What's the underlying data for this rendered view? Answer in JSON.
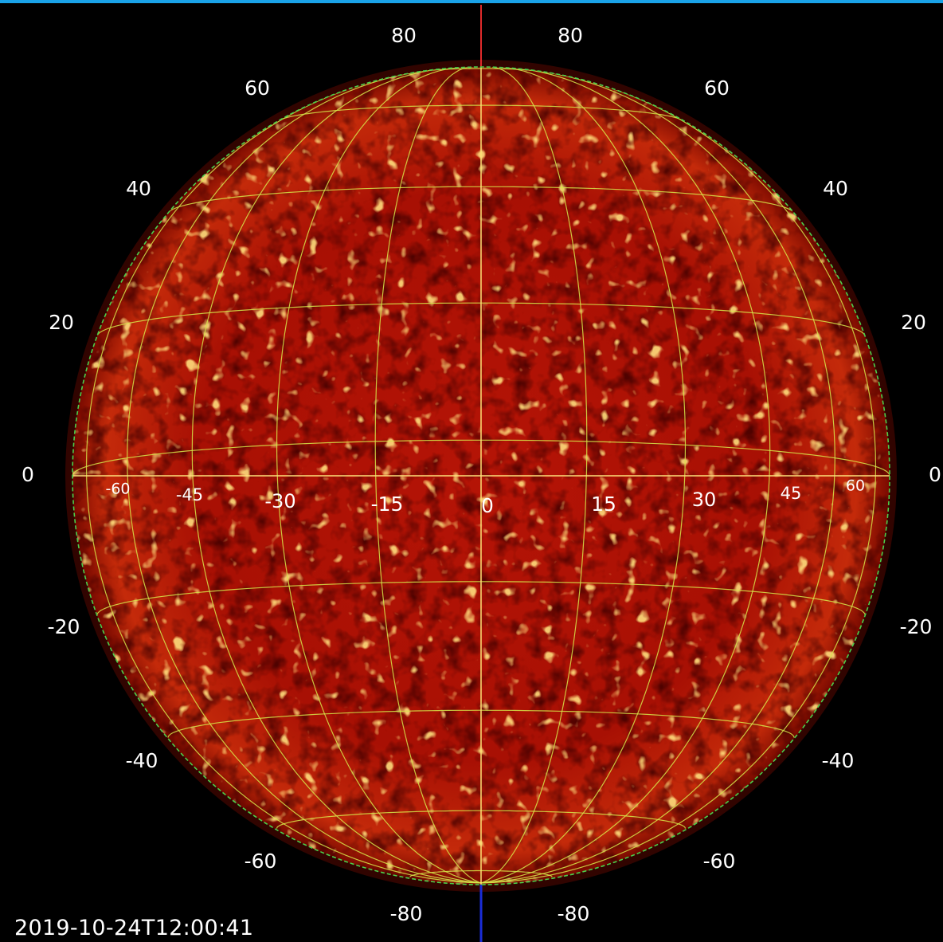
{
  "colors": {
    "top_bar": "#1aa3e8",
    "background": "#000000",
    "grid": "#d6e84a",
    "limb": "#4bd04b",
    "disk_core": "#b31205",
    "disk_edge": "#7a0a00",
    "north_axis": "#e02a2a",
    "south_axis": "#1a2cd8"
  },
  "timestamp": "2019-10-24T12:00:41",
  "latitude_labels": {
    "left": [
      "80",
      "60",
      "40",
      "20",
      "0",
      "-20",
      "-40",
      "-60",
      "-80"
    ],
    "right": [
      "80",
      "60",
      "40",
      "20",
      "0",
      "-20",
      "-40",
      "-60",
      "-80"
    ]
  },
  "longitude_labels": [
    "-60",
    "-45",
    "-30",
    "-15",
    "0",
    "15",
    "30",
    "45",
    "60"
  ],
  "latitudes": [
    80,
    60,
    40,
    20,
    0,
    -20,
    -40,
    -60,
    -80
  ],
  "longitudes": [
    -75,
    -60,
    -45,
    -30,
    -15,
    0,
    15,
    30,
    45,
    60,
    75
  ]
}
